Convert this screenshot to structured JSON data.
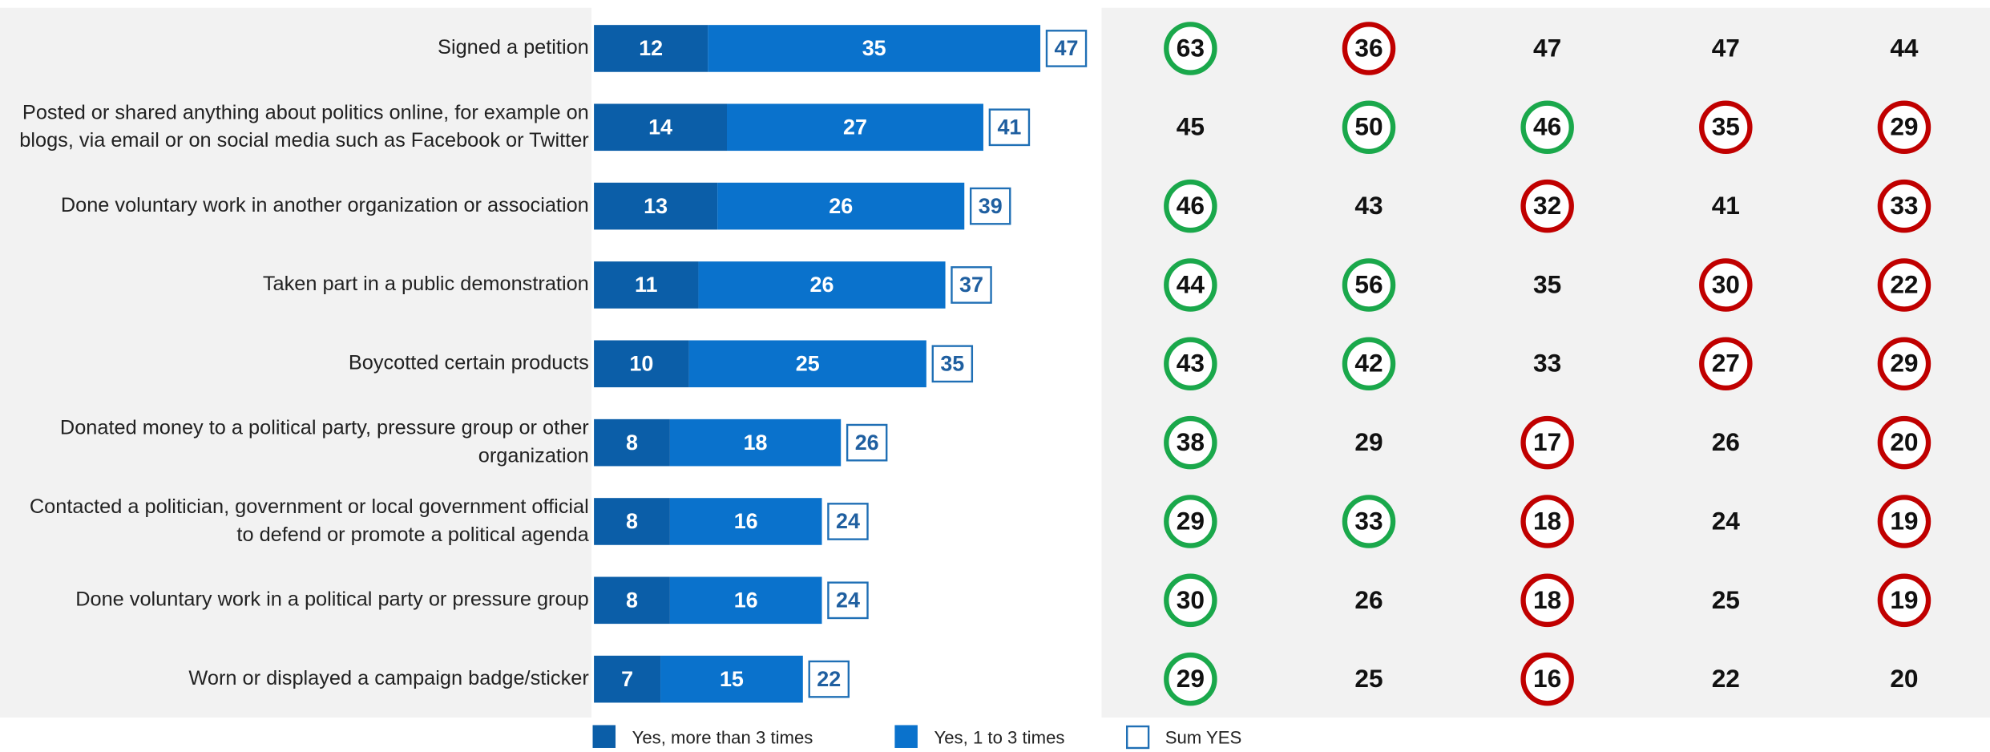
{
  "chart_data": {
    "type": "stacked-bar-table",
    "categories": [
      "Signed a petition",
      "Posted or shared anything about politics online, for example on\nblogs, via email or on social media such as Facebook or Twitter",
      "Done voluntary work in another organization or association",
      "Taken part in a public demonstration",
      "Boycotted certain products",
      "Donated money to a political party, pressure group or other\norganization",
      "Contacted a politician, government or local government official\nto defend or promote a political agenda",
      "Done voluntary work in a political party or pressure group",
      "Worn or displayed a campaign badge/sticker"
    ],
    "series": [
      {
        "name": "Yes, more than 3 times",
        "color": "#0b5ea8",
        "values": [
          12,
          14,
          13,
          11,
          10,
          8,
          8,
          8,
          7
        ]
      },
      {
        "name": "Yes, 1 to 3 times",
        "color": "#0a72cc",
        "values": [
          35,
          27,
          26,
          26,
          25,
          18,
          16,
          16,
          15
        ]
      }
    ],
    "totals": {
      "name": "Sum YES",
      "color": "#1f6fb5",
      "values": [
        47,
        41,
        39,
        37,
        35,
        26,
        24,
        24,
        22
      ]
    },
    "xlim": [
      0,
      60
    ],
    "table": {
      "rows": [
        [
          {
            "value": 63,
            "circle": "#1aa84b"
          },
          {
            "value": 36,
            "circle": "#c00000"
          },
          {
            "value": 47
          },
          {
            "value": 47
          },
          {
            "value": 44
          }
        ],
        [
          {
            "value": 45
          },
          {
            "value": 50,
            "circle": "#1aa84b"
          },
          {
            "value": 46,
            "circle": "#1aa84b"
          },
          {
            "value": 35,
            "circle": "#c00000"
          },
          {
            "value": 29,
            "circle": "#c00000"
          }
        ],
        [
          {
            "value": 46,
            "circle": "#1aa84b"
          },
          {
            "value": 43
          },
          {
            "value": 32,
            "circle": "#c00000"
          },
          {
            "value": 41
          },
          {
            "value": 33,
            "circle": "#c00000"
          }
        ],
        [
          {
            "value": 44,
            "circle": "#1aa84b"
          },
          {
            "value": 56,
            "circle": "#1aa84b"
          },
          {
            "value": 35
          },
          {
            "value": 30,
            "circle": "#c00000"
          },
          {
            "value": 22,
            "circle": "#c00000"
          }
        ],
        [
          {
            "value": 43,
            "circle": "#1aa84b"
          },
          {
            "value": 42,
            "circle": "#1aa84b"
          },
          {
            "value": 33
          },
          {
            "value": 27,
            "circle": "#c00000"
          },
          {
            "value": 29,
            "circle": "#c00000"
          }
        ],
        [
          {
            "value": 38,
            "circle": "#1aa84b"
          },
          {
            "value": 29
          },
          {
            "value": 17,
            "circle": "#c00000"
          },
          {
            "value": 26
          },
          {
            "value": 20,
            "circle": "#c00000"
          }
        ],
        [
          {
            "value": 29,
            "circle": "#1aa84b"
          },
          {
            "value": 33,
            "circle": "#1aa84b"
          },
          {
            "value": 18,
            "circle": "#c00000"
          },
          {
            "value": 24
          },
          {
            "value": 19,
            "circle": "#c00000"
          }
        ],
        [
          {
            "value": 30,
            "circle": "#1aa84b"
          },
          {
            "value": 26
          },
          {
            "value": 18,
            "circle": "#c00000"
          },
          {
            "value": 25
          },
          {
            "value": 19,
            "circle": "#c00000"
          }
        ],
        [
          {
            "value": 29,
            "circle": "#1aa84b"
          },
          {
            "value": 25
          },
          {
            "value": 16,
            "circle": "#c00000"
          },
          {
            "value": 22
          },
          {
            "value": 20
          }
        ]
      ]
    }
  }
}
